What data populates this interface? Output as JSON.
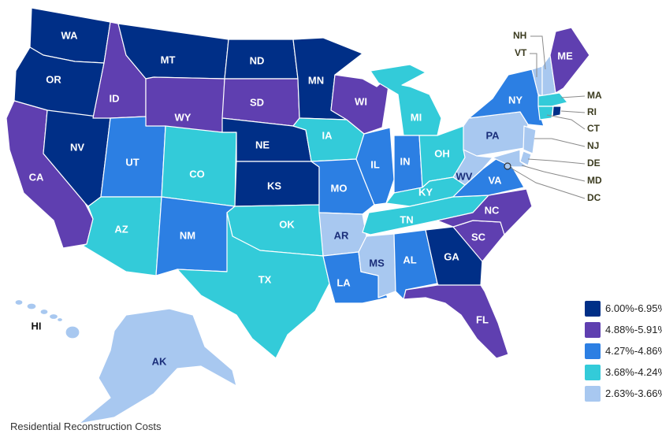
{
  "caption": "Residential Reconstruction Costs",
  "palette": {
    "band1": "#002f87",
    "band2": "#5f3fb0",
    "band3": "#2c7fe3",
    "band4": "#33cbd9",
    "band5": "#a8c8f0"
  },
  "legend": [
    {
      "label": "6.00%-6.95%",
      "band": "band1"
    },
    {
      "label": "4.88%-5.91%",
      "band": "band2"
    },
    {
      "label": "4.27%-4.86%",
      "band": "band3"
    },
    {
      "label": "3.68%-4.24%",
      "band": "band4"
    },
    {
      "label": "2.63%-3.66%",
      "band": "band5"
    }
  ],
  "states": [
    {
      "code": "WA",
      "band": "band1"
    },
    {
      "code": "OR",
      "band": "band1"
    },
    {
      "code": "CA",
      "band": "band2"
    },
    {
      "code": "NV",
      "band": "band1"
    },
    {
      "code": "ID",
      "band": "band2"
    },
    {
      "code": "MT",
      "band": "band1"
    },
    {
      "code": "WY",
      "band": "band2"
    },
    {
      "code": "UT",
      "band": "band3"
    },
    {
      "code": "CO",
      "band": "band4"
    },
    {
      "code": "AZ",
      "band": "band4"
    },
    {
      "code": "NM",
      "band": "band3"
    },
    {
      "code": "ND",
      "band": "band1"
    },
    {
      "code": "SD",
      "band": "band2"
    },
    {
      "code": "NE",
      "band": "band1"
    },
    {
      "code": "KS",
      "band": "band1"
    },
    {
      "code": "OK",
      "band": "band4"
    },
    {
      "code": "TX",
      "band": "band4"
    },
    {
      "code": "MN",
      "band": "band1"
    },
    {
      "code": "IA",
      "band": "band4"
    },
    {
      "code": "MO",
      "band": "band3"
    },
    {
      "code": "AR",
      "band": "band5"
    },
    {
      "code": "LA",
      "band": "band3"
    },
    {
      "code": "WI",
      "band": "band2"
    },
    {
      "code": "IL",
      "band": "band3"
    },
    {
      "code": "MI",
      "band": "band4"
    },
    {
      "code": "IN",
      "band": "band3"
    },
    {
      "code": "OH",
      "band": "band4"
    },
    {
      "code": "KY",
      "band": "band4"
    },
    {
      "code": "TN",
      "band": "band4"
    },
    {
      "code": "MS",
      "band": "band5"
    },
    {
      "code": "AL",
      "band": "band3"
    },
    {
      "code": "GA",
      "band": "band1"
    },
    {
      "code": "FL",
      "band": "band2"
    },
    {
      "code": "SC",
      "band": "band2"
    },
    {
      "code": "NC",
      "band": "band2"
    },
    {
      "code": "VA",
      "band": "band3"
    },
    {
      "code": "WV",
      "band": "band5"
    },
    {
      "code": "PA",
      "band": "band5"
    },
    {
      "code": "NY",
      "band": "band3"
    },
    {
      "code": "ME",
      "band": "band2"
    },
    {
      "code": "NH",
      "band": "band5"
    },
    {
      "code": "VT",
      "band": "band5"
    },
    {
      "code": "MA",
      "band": "band4"
    },
    {
      "code": "RI",
      "band": "band1"
    },
    {
      "code": "CT",
      "band": "band4"
    },
    {
      "code": "NJ",
      "band": "band5"
    },
    {
      "code": "DE",
      "band": "band5"
    },
    {
      "code": "MD",
      "band": "band5"
    },
    {
      "code": "DC",
      "band": "band5"
    },
    {
      "code": "AK",
      "band": "band5"
    },
    {
      "code": "HI",
      "band": "band5"
    }
  ]
}
